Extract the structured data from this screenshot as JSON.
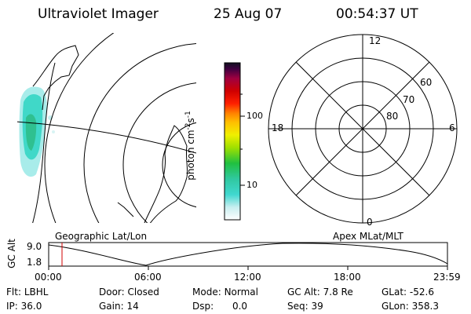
{
  "header": {
    "instrument": "Ultraviolet Imager",
    "date": "25 Aug 07",
    "time": "00:54:37 UT"
  },
  "colorbar": {
    "unit_label_pre": "photon cm",
    "unit_sup1": "-2",
    "unit_mid": "s",
    "unit_sup2": "-1",
    "tick_100": "100",
    "tick_10": "10"
  },
  "polar": {
    "mlt_12": "12",
    "mlt_18": "18",
    "mlt_6": "6",
    "mlt_0": "0",
    "mlat_60": "60",
    "mlat_70": "70",
    "mlat_80": "80"
  },
  "map_labels": {
    "left": "Geographic Lat/Lon",
    "right": "Apex MLat/MLT"
  },
  "gc_alt_plot": {
    "axis_label": "GC Alt",
    "y_top": "9.0",
    "y_bottom": "1.8",
    "x_ticks": [
      "00:00",
      "06:00",
      "12:00",
      "18:00",
      "23:59"
    ],
    "marker_time": "00:54:37",
    "marker_color": "#d00000"
  },
  "status": {
    "flt_label": "Flt:",
    "flt_value": "LBHL",
    "ip_label": "IP:",
    "ip_value": "36.0",
    "door_label": "Door:",
    "door_value": "Closed",
    "gain_label": "Gain:",
    "gain_value": "14",
    "mode_label": "Mode:",
    "mode_value": "Normal",
    "dsp_label": "Dsp:",
    "dsp_value": "0.0",
    "gcalt_label": "GC Alt:",
    "gcalt_value": "7.8 Re",
    "seq_label": "Seq:",
    "seq_value": "39",
    "glat_label": "GLat:",
    "glat_value": "-52.6",
    "glon_label": "GLon:",
    "glon_value": "358.3"
  }
}
